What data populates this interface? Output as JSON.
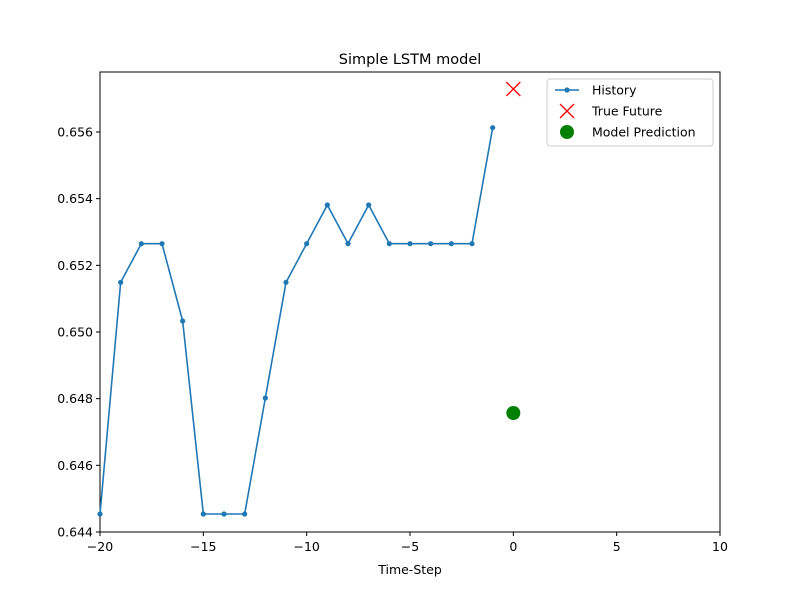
{
  "chart_data": {
    "type": "line",
    "title": "Simple LSTM model",
    "xlabel": "Time-Step",
    "ylabel": "",
    "xlim": [
      -20,
      10
    ],
    "ylim": [
      0.644,
      0.6578
    ],
    "grid": false,
    "legend_placement": "top-right",
    "x_ticks": [
      -20,
      -15,
      -10,
      -5,
      0,
      5,
      10
    ],
    "x_tick_labels": [
      "−20",
      "−15",
      "−10",
      "−5",
      "0",
      "5",
      "10"
    ],
    "y_ticks": [
      0.644,
      0.646,
      0.648,
      0.65,
      0.652,
      0.654,
      0.656
    ],
    "y_tick_labels": [
      "0.644",
      "0.646",
      "0.648",
      "0.650",
      "0.652",
      "0.654",
      "0.656"
    ],
    "series": [
      {
        "name": "History",
        "kind": "line-with-markers",
        "color": "#1f77b4",
        "x": [
          -20,
          -19,
          -18,
          -17,
          -16,
          -15,
          -14,
          -13,
          -12,
          -11,
          -10,
          -9,
          -8,
          -7,
          -6,
          -5,
          -4,
          -3,
          -2,
          -1
        ],
        "y": [
          0.64454,
          0.65149,
          0.65265,
          0.65265,
          0.65033,
          0.64454,
          0.64454,
          0.64454,
          0.64802,
          0.65149,
          0.65265,
          0.65381,
          0.65265,
          0.65381,
          0.65265,
          0.65265,
          0.65265,
          0.65265,
          0.65265,
          0.65613
        ]
      },
      {
        "name": "True Future",
        "kind": "marker-x",
        "color": "#ff0000",
        "x": [
          0
        ],
        "y": [
          0.65729
        ]
      },
      {
        "name": "Model Prediction",
        "kind": "marker-circle",
        "color": "#008000",
        "x": [
          0
        ],
        "y": [
          0.64757
        ]
      }
    ]
  }
}
